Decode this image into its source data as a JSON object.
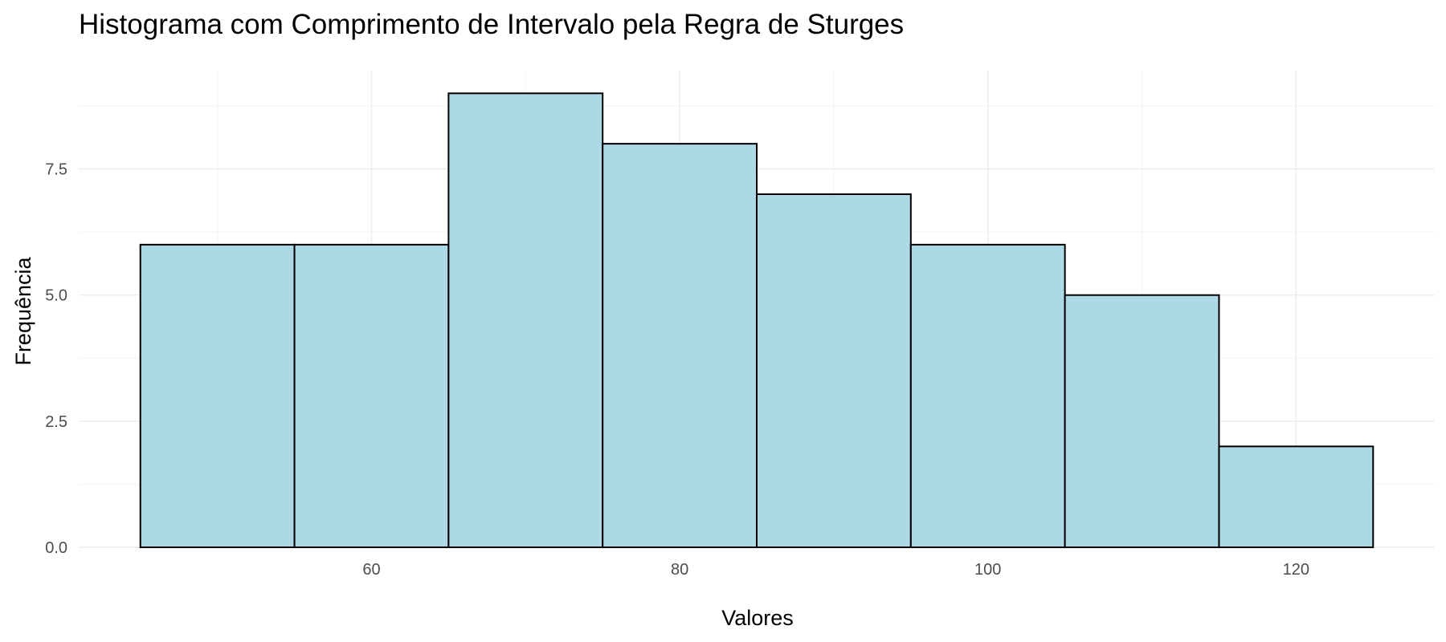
{
  "chart_data": {
    "type": "bar",
    "title": "Histograma com Comprimento de Intervalo pela Regra de Sturges",
    "xlabel": "Valores",
    "ylabel": "Frequência",
    "bins": [
      {
        "x0": 45,
        "x1": 55,
        "count": 6
      },
      {
        "x0": 55,
        "x1": 65,
        "count": 6
      },
      {
        "x0": 65,
        "x1": 75,
        "count": 9
      },
      {
        "x0": 75,
        "x1": 85,
        "count": 8
      },
      {
        "x0": 85,
        "x1": 95,
        "count": 7
      },
      {
        "x0": 95,
        "x1": 105,
        "count": 6
      },
      {
        "x0": 105,
        "x1": 115,
        "count": 5
      },
      {
        "x0": 115,
        "x1": 125,
        "count": 2
      }
    ],
    "xlim": [
      41,
      129
    ],
    "ylim": [
      0,
      9.45
    ],
    "x_ticks": [
      60,
      80,
      100,
      120
    ],
    "x_tick_labels": [
      "60",
      "80",
      "100",
      "120"
    ],
    "y_ticks": [
      0,
      2.5,
      5,
      7.5
    ],
    "y_tick_labels": [
      "0.0",
      "2.5",
      "5.0",
      "7.5"
    ],
    "x_minor_ticks": [
      50,
      70,
      90,
      110
    ],
    "y_minor_ticks": [
      1.25,
      3.75,
      6.25,
      8.75
    ],
    "bar_fill": "#add8e6",
    "bar_stroke": "#000000",
    "grid": true,
    "legend": "none"
  }
}
